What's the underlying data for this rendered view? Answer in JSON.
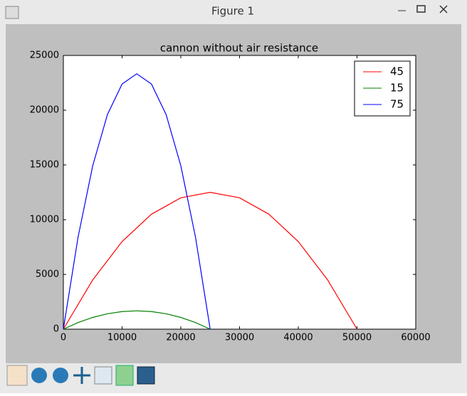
{
  "window": {
    "title": "Figure 1"
  },
  "chart_data": {
    "type": "line",
    "title": "cannon without air resistance",
    "xlim": [
      0,
      60000
    ],
    "xticks": [
      0,
      10000,
      20000,
      30000,
      40000,
      50000,
      60000
    ],
    "ylim": [
      0,
      25000
    ],
    "yticks": [
      0,
      5000,
      10000,
      15000,
      20000,
      25000
    ],
    "legend": "upper right",
    "series": [
      {
        "name": "45",
        "color": "#ff0000",
        "x": [
          0,
          5000,
          10000,
          15000,
          20000,
          25000,
          30000,
          35000,
          40000,
          45000,
          50000
        ],
        "values": [
          0,
          4500,
          8000,
          10500,
          12000,
          12500,
          12000,
          10500,
          8000,
          4500,
          0
        ]
      },
      {
        "name": "15",
        "color": "#008000",
        "x": [
          0,
          2500,
          5000,
          7500,
          10000,
          12500,
          15000,
          17500,
          20000,
          22500,
          25000
        ],
        "values": [
          0,
          603,
          1072,
          1407,
          1608,
          1675,
          1608,
          1407,
          1072,
          603,
          0
        ]
      },
      {
        "name": "75",
        "color": "#0000ff",
        "x": [
          0,
          2500,
          5000,
          7500,
          10000,
          12500,
          15000,
          17500,
          20000,
          22500,
          25000
        ],
        "values": [
          0,
          8397,
          14928,
          19593,
          22392,
          23325,
          22392,
          19593,
          14928,
          8397,
          0
        ]
      }
    ]
  }
}
